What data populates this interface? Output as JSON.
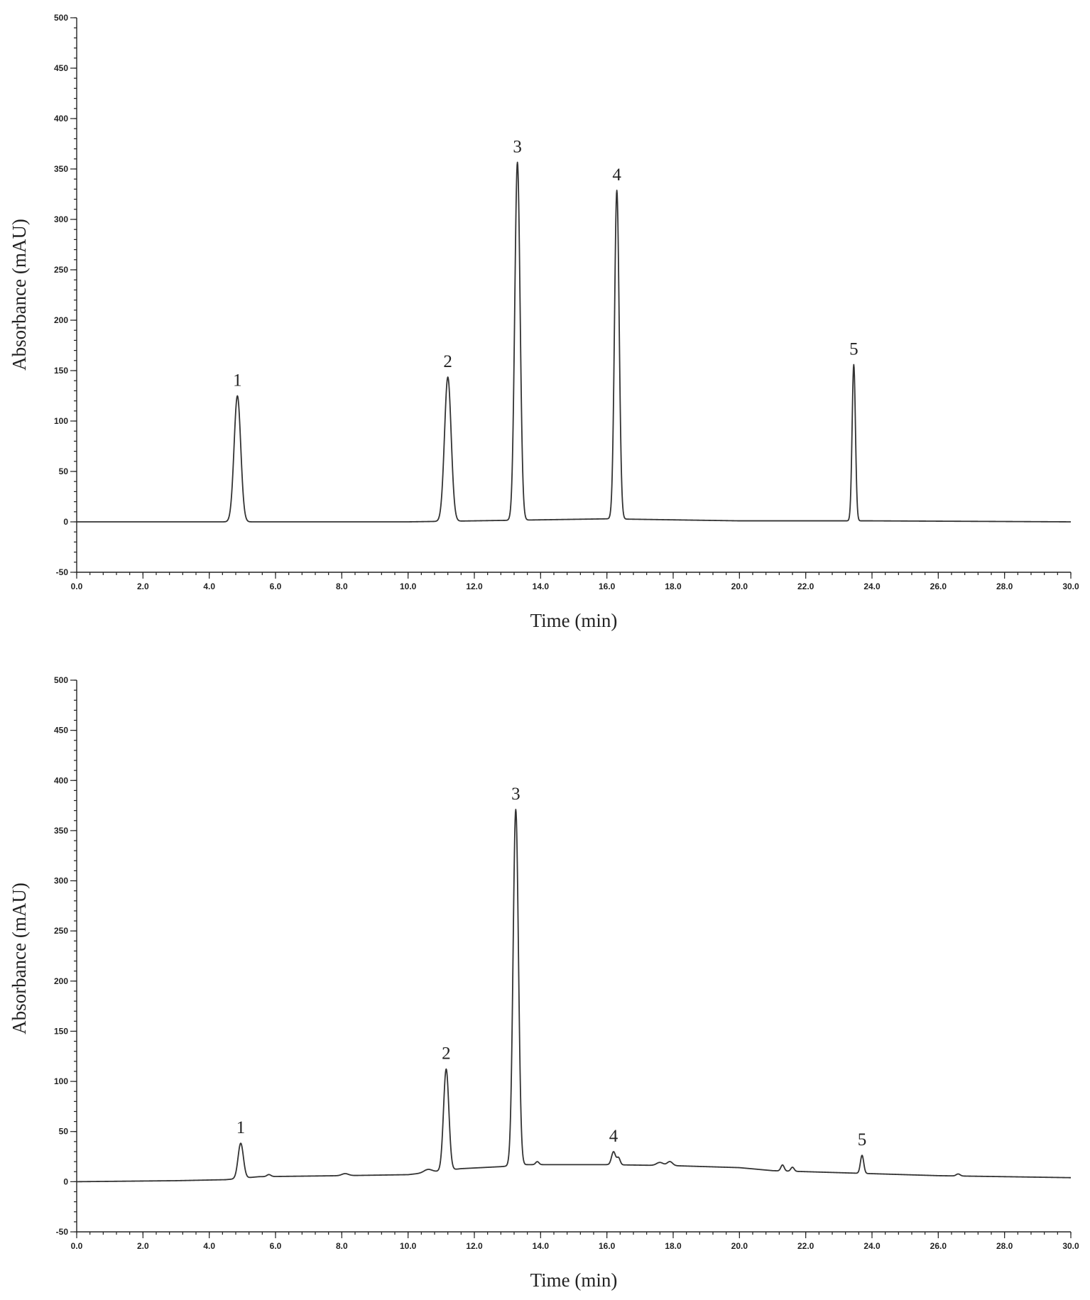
{
  "chart_data": [
    {
      "type": "line",
      "xlabel": "Time (min)",
      "ylabel": "Absorbance (mAU)",
      "xlim": [
        0,
        30
      ],
      "ylim": [
        -50,
        500
      ],
      "x_ticks": [
        "0.0",
        "2.0",
        "4.0",
        "6.0",
        "8.0",
        "10.0",
        "12.0",
        "14.0",
        "16.0",
        "18.0",
        "20.0",
        "22.0",
        "24.0",
        "26.0",
        "28.0",
        "30.0"
      ],
      "y_ticks": [
        "-50",
        "0",
        "50",
        "100",
        "150",
        "200",
        "250",
        "300",
        "350",
        "400",
        "450",
        "500"
      ],
      "grid": false,
      "baseline": [
        [
          0,
          0
        ],
        [
          4,
          0
        ],
        [
          10,
          0
        ],
        [
          14,
          2
        ],
        [
          16,
          3
        ],
        [
          20,
          1
        ],
        [
          24,
          1
        ],
        [
          30,
          0
        ]
      ],
      "peaks": [
        {
          "label": "1",
          "x": 4.85,
          "y": 125,
          "width": 0.1
        },
        {
          "label": "2",
          "x": 11.2,
          "y": 143,
          "width": 0.1
        },
        {
          "label": "3",
          "x": 13.3,
          "y": 355,
          "width": 0.08
        },
        {
          "label": "4",
          "x": 16.3,
          "y": 326,
          "width": 0.07
        },
        {
          "label": "5",
          "x": 23.45,
          "y": 155,
          "width": 0.05
        }
      ]
    },
    {
      "type": "line",
      "xlabel": "Time (min)",
      "ylabel": "Absorbance (mAU)",
      "xlim": [
        0,
        30
      ],
      "ylim": [
        -50,
        500
      ],
      "x_ticks": [
        "0.0",
        "2.0",
        "4.0",
        "6.0",
        "8.0",
        "10.0",
        "12.0",
        "14.0",
        "16.0",
        "18.0",
        "20.0",
        "22.0",
        "24.0",
        "26.0",
        "28.0",
        "30.0"
      ],
      "y_ticks": [
        "-50",
        "0",
        "50",
        "100",
        "150",
        "200",
        "250",
        "300",
        "350",
        "400",
        "450",
        "500"
      ],
      "grid": false,
      "baseline": [
        [
          0,
          0
        ],
        [
          3,
          1
        ],
        [
          4.5,
          2
        ],
        [
          5.5,
          5
        ],
        [
          8,
          6
        ],
        [
          10,
          7
        ],
        [
          10.8,
          10
        ],
        [
          11.6,
          13
        ],
        [
          12.8,
          15
        ],
        [
          13.6,
          17
        ],
        [
          16,
          17
        ],
        [
          18,
          16
        ],
        [
          20,
          14
        ],
        [
          21,
          11
        ],
        [
          22,
          10
        ],
        [
          24,
          8
        ],
        [
          26,
          6
        ],
        [
          28,
          5
        ],
        [
          30,
          4
        ]
      ],
      "peaks": [
        {
          "label": "1",
          "x": 4.95,
          "y": 35,
          "width": 0.08
        },
        {
          "label": "2",
          "x": 11.15,
          "y": 101,
          "width": 0.08
        },
        {
          "label": "3",
          "x": 13.25,
          "y": 355,
          "width": 0.08
        },
        {
          "label": "4",
          "x": 16.2,
          "y": 13,
          "width": 0.06
        },
        {
          "label": "5",
          "x": 23.7,
          "y": 18,
          "width": 0.05
        }
      ],
      "minor_peaks": [
        {
          "x": 5.8,
          "y": 2,
          "width": 0.06
        },
        {
          "x": 8.1,
          "y": 2,
          "width": 0.1
        },
        {
          "x": 10.6,
          "y": 3,
          "width": 0.12
        },
        {
          "x": 13.9,
          "y": 3,
          "width": 0.05
        },
        {
          "x": 16.35,
          "y": 7,
          "width": 0.05
        },
        {
          "x": 17.6,
          "y": 3,
          "width": 0.1
        },
        {
          "x": 17.9,
          "y": 4,
          "width": 0.08
        },
        {
          "x": 21.3,
          "y": 6,
          "width": 0.05
        },
        {
          "x": 21.6,
          "y": 4,
          "width": 0.05
        },
        {
          "x": 26.6,
          "y": 2,
          "width": 0.06
        }
      ]
    }
  ]
}
